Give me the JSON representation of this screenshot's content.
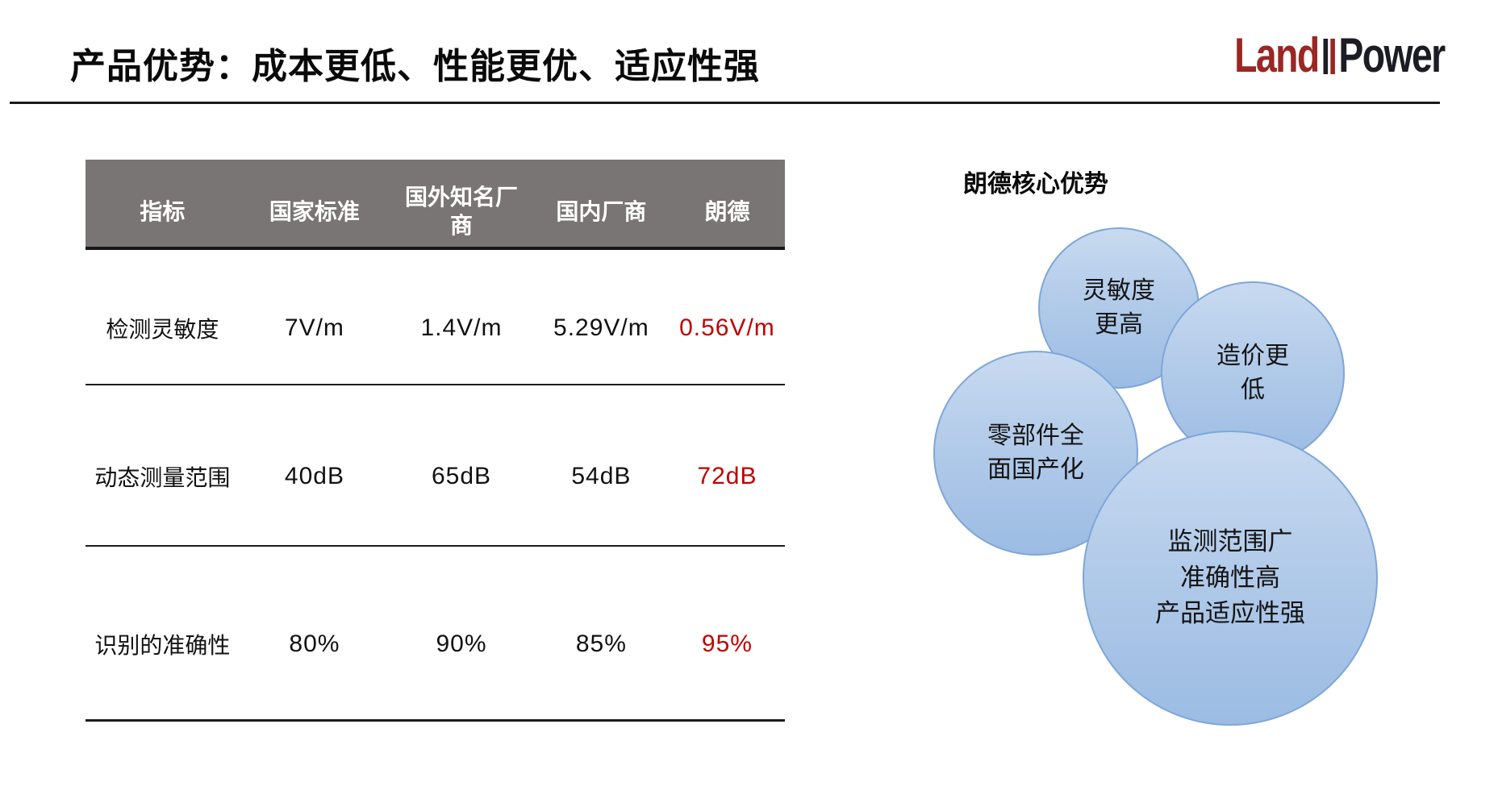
{
  "title": "产品优势：成本更低、性能更优、适应性强",
  "logo": {
    "land": "Land",
    "power": "Power",
    "land_color": "#9a2723",
    "power_color": "#1c1c24"
  },
  "table": {
    "header_bg": "#7a7575",
    "highlight_color": "#c00000",
    "headers": [
      "指标",
      "国家标准",
      "国外知名厂商",
      "国内厂商",
      "朗德"
    ],
    "rows": [
      {
        "label": "检测灵敏度",
        "values": [
          "7V/m",
          "1.4V/m",
          "5.29V/m",
          "0.56V/m"
        ]
      },
      {
        "label": "动态测量范围",
        "values": [
          "40dB",
          "65dB",
          "54dB",
          "72dB"
        ]
      },
      {
        "label": "识别的准确性",
        "values": [
          "80%",
          "90%",
          "85%",
          "95%"
        ]
      }
    ]
  },
  "advantages": {
    "heading": "朗德核心优势",
    "bubble_fill_top": "#c8daf0",
    "bubble_fill_bottom": "#9cbce3",
    "bubble_border": "#7ea6d8",
    "bubbles": [
      {
        "text": "灵敏度\n更高"
      },
      {
        "text": "造价更\n低"
      },
      {
        "text": "零部件全\n面国产化"
      },
      {
        "text": "监测范围广\n准确性高\n产品适应性强"
      }
    ]
  }
}
